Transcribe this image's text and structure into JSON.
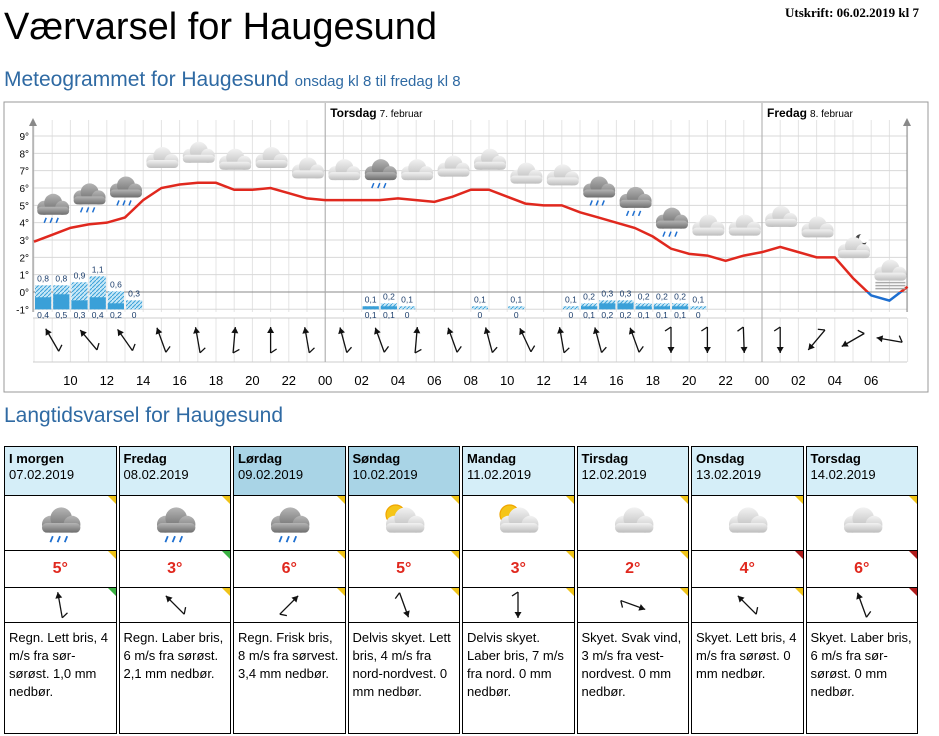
{
  "header": {
    "title": "Værvarsel for Haugesund",
    "printed": "Utskrift: 06.02.2019 kl 7"
  },
  "chart_data": {
    "type": "line",
    "title": "Meteogrammet for Haugesund",
    "subtitle": "onsdag kl 8 til fredag kl 8",
    "days": [
      {
        "x": 16,
        "day": "Torsdag",
        "date": "7. februar"
      },
      {
        "x": 40,
        "day": "Fredag",
        "date": "8. februar"
      }
    ],
    "categories": [
      null,
      null,
      "10",
      null,
      "12",
      null,
      "14",
      null,
      "16",
      null,
      "18",
      null,
      "20",
      null,
      "22",
      null,
      "00",
      null,
      "02",
      null,
      "04",
      null,
      "06",
      null,
      "08",
      null,
      "10",
      null,
      "12",
      null,
      "14",
      null,
      "16",
      null,
      "18",
      null,
      "20",
      null,
      "22",
      null,
      "00",
      null,
      "02",
      null,
      "04",
      null,
      "06",
      null,
      null
    ],
    "values": [
      2.9,
      3.3,
      3.7,
      3.9,
      4.0,
      4.3,
      5.3,
      6.0,
      6.2,
      6.3,
      6.3,
      5.9,
      5.9,
      6.0,
      5.7,
      5.4,
      5.3,
      5.3,
      5.3,
      5.3,
      5.4,
      5.3,
      5.2,
      5.5,
      5.9,
      5.9,
      5.5,
      5.1,
      5.0,
      5.0,
      4.6,
      4.3,
      4.0,
      3.7,
      3.2,
      2.5,
      2.2,
      2.1,
      1.8,
      2.1,
      2.3,
      2.6,
      2.3,
      2.0,
      2.0,
      0.8,
      -0.2,
      -0.5,
      0.3
    ],
    "color": "#e0281e",
    "below_zero_color": "#1e6fd0",
    "ylim": [
      -1,
      10
    ],
    "yticks": [
      {
        "value": -1,
        "label": "-1°"
      },
      {
        "value": 0,
        "label": "0°"
      },
      {
        "value": 1,
        "label": "1°"
      },
      {
        "value": 2,
        "label": "2°"
      },
      {
        "value": 3,
        "label": "3°"
      },
      {
        "value": 4,
        "label": "4°"
      },
      {
        "value": 5,
        "label": "5°"
      },
      {
        "value": 6,
        "label": "6°"
      },
      {
        "value": 7,
        "label": "7°"
      },
      {
        "value": 8,
        "label": "8°"
      },
      {
        "value": 9,
        "label": "9°"
      }
    ],
    "grid": true,
    "precipitation": [
      {
        "x": 0,
        "max": 0.8,
        "max_label": "0,8",
        "min": 0.4,
        "min_label": "0,4"
      },
      {
        "x": 1,
        "max": 0.8,
        "max_label": "0,8",
        "min": 0.5,
        "min_label": "0,5"
      },
      {
        "x": 2,
        "max": 0.9,
        "max_label": "0,9",
        "min": 0.3,
        "min_label": "0,3"
      },
      {
        "x": 3,
        "max": 1.1,
        "max_label": "1,1",
        "min": 0.4,
        "min_label": "0,4"
      },
      {
        "x": 4,
        "max": 0.6,
        "max_label": "0,6",
        "min": 0.2,
        "min_label": "0,2"
      },
      {
        "x": 5,
        "max": 0.3,
        "max_label": "0,3",
        "min": 0,
        "min_label": "0"
      },
      {
        "x": 18,
        "max": 0.1,
        "max_label": "0,1",
        "min": 0.1,
        "min_label": "0,1"
      },
      {
        "x": 19,
        "max": 0.2,
        "max_label": "0,2",
        "min": 0.1,
        "min_label": "0,1"
      },
      {
        "x": 20,
        "max": 0.1,
        "max_label": "0,1",
        "min": 0,
        "min_label": "0"
      },
      {
        "x": 24,
        "max": 0.1,
        "max_label": "0,1",
        "min": 0,
        "min_label": "0"
      },
      {
        "x": 26,
        "max": 0.1,
        "max_label": "0,1",
        "min": 0,
        "min_label": "0"
      },
      {
        "x": 29,
        "max": 0.1,
        "max_label": "0,1",
        "min": 0,
        "min_label": "0"
      },
      {
        "x": 30,
        "max": 0.2,
        "max_label": "0,2",
        "min": 0.1,
        "min_label": "0,1"
      },
      {
        "x": 31,
        "max": 0.3,
        "max_label": "0,3",
        "min": 0.2,
        "min_label": "0,2"
      },
      {
        "x": 32,
        "max": 0.3,
        "max_label": "0,3",
        "min": 0.2,
        "min_label": "0,2"
      },
      {
        "x": 33,
        "max": 0.2,
        "max_label": "0,2",
        "min": 0.1,
        "min_label": "0,1"
      },
      {
        "x": 34,
        "max": 0.2,
        "max_label": "0,2",
        "min": 0.1,
        "min_label": "0,1"
      },
      {
        "x": 35,
        "max": 0.2,
        "max_label": "0,2",
        "min": 0.1,
        "min_label": "0,1"
      },
      {
        "x": 36,
        "max": 0.1,
        "max_label": "0,1",
        "min": 0,
        "min_label": "0"
      }
    ],
    "wind_direction": [
      -30,
      -40,
      -35,
      -20,
      -10,
      5,
      0,
      -10,
      -15,
      -20,
      5,
      -20,
      -15,
      -25,
      -10,
      -15,
      -20,
      180,
      180,
      178,
      180,
      -140,
      -120,
      -80
    ]
  },
  "longterm": {
    "title": "Langtidsvarsel for Haugesund",
    "days": [
      {
        "day": "I morgen",
        "date": "07.02.2019",
        "temperature": "5°",
        "text": "Regn. Lett bris, 4 m/s fra sør-sørøst. 1,0 mm nedbør."
      },
      {
        "day": "Fredag",
        "date": "08.02.2019",
        "temperature": "3°",
        "text": "Regn. Laber bris, 6 m/s fra sørøst. 2,1 mm nedbør."
      },
      {
        "day": "Lørdag",
        "date": "09.02.2019",
        "temperature": "6°",
        "text": "Regn. Frisk bris, 8 m/s fra sørvest. 3,4 mm nedbør."
      },
      {
        "day": "Søndag",
        "date": "10.02.2019",
        "temperature": "5°",
        "text": "Delvis skyet. Lett bris, 4 m/s fra nord-nordvest. 0 mm nedbør."
      },
      {
        "day": "Mandag",
        "date": "11.02.2019",
        "temperature": "3°",
        "text": "Delvis skyet. Laber bris, 7 m/s fra nord. 0 mm nedbør."
      },
      {
        "day": "Tirsdag",
        "date": "12.02.2019",
        "temperature": "2°",
        "text": "Skyet. Svak vind, 3 m/s fra vest-nordvest. 0 mm nedbør."
      },
      {
        "day": "Onsdag",
        "date": "13.02.2019",
        "temperature": "4°",
        "text": "Skyet. Lett bris, 4 m/s fra sørøst. 0 mm nedbør."
      },
      {
        "day": "Torsdag",
        "date": "14.02.2019",
        "temperature": "6°",
        "text": "Skyet. Laber bris, 6 m/s fra sør-sørøst. 0 mm nedbør."
      }
    ]
  }
}
